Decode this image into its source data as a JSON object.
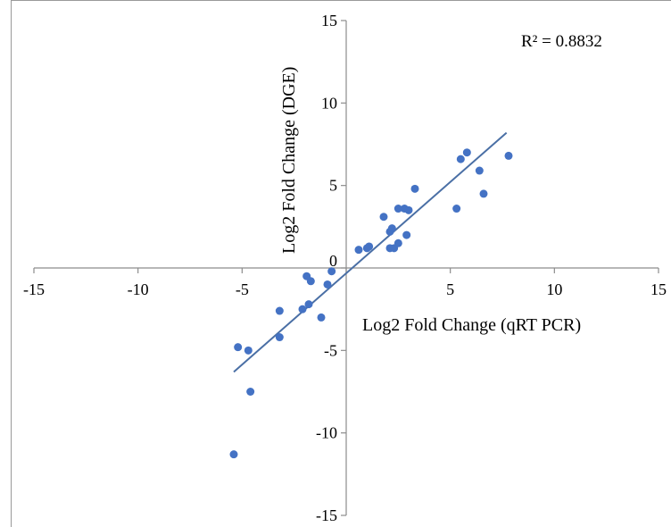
{
  "chart_data": {
    "type": "scatter",
    "xlabel": "Log2 Fold Change (qRT PCR)",
    "ylabel": "Log2 Fold Change (DGE)",
    "xlim": [
      -15,
      15
    ],
    "ylim": [
      -15,
      15
    ],
    "xticks": [
      -15,
      -10,
      -5,
      0,
      5,
      10,
      15
    ],
    "yticks": [
      -15,
      -10,
      -5,
      0,
      5,
      10,
      15
    ],
    "annotation": "R² = 0.8832",
    "point_color": "#4472c4",
    "trendline_color": "#4a6fa5",
    "grid": false,
    "points": [
      {
        "x": -5.4,
        "y": -11.3
      },
      {
        "x": -5.2,
        "y": -4.8
      },
      {
        "x": -4.7,
        "y": -5.0
      },
      {
        "x": -4.6,
        "y": -7.5
      },
      {
        "x": -3.2,
        "y": -2.6
      },
      {
        "x": -3.2,
        "y": -4.2
      },
      {
        "x": -2.1,
        "y": -2.5
      },
      {
        "x": -1.9,
        "y": -0.5
      },
      {
        "x": -1.8,
        "y": -2.2
      },
      {
        "x": -1.7,
        "y": -0.8
      },
      {
        "x": -1.2,
        "y": -3.0
      },
      {
        "x": -0.9,
        "y": -1.0
      },
      {
        "x": -0.7,
        "y": -0.2
      },
      {
        "x": 0.6,
        "y": 1.1
      },
      {
        "x": 1.0,
        "y": 1.2
      },
      {
        "x": 1.1,
        "y": 1.3
      },
      {
        "x": 1.8,
        "y": 3.1
      },
      {
        "x": 2.1,
        "y": 1.2
      },
      {
        "x": 2.1,
        "y": 2.2
      },
      {
        "x": 2.2,
        "y": 2.4
      },
      {
        "x": 2.3,
        "y": 1.2
      },
      {
        "x": 2.5,
        "y": 1.5
      },
      {
        "x": 2.5,
        "y": 3.6
      },
      {
        "x": 2.8,
        "y": 3.6
      },
      {
        "x": 2.9,
        "y": 2.0
      },
      {
        "x": 3.0,
        "y": 3.5
      },
      {
        "x": 3.3,
        "y": 4.8
      },
      {
        "x": 5.3,
        "y": 3.6
      },
      {
        "x": 5.5,
        "y": 6.6
      },
      {
        "x": 5.8,
        "y": 7.0
      },
      {
        "x": 6.4,
        "y": 5.9
      },
      {
        "x": 6.6,
        "y": 4.5
      },
      {
        "x": 7.8,
        "y": 6.8
      }
    ],
    "trendline": {
      "x": [
        -5.4,
        7.7
      ],
      "y": [
        -6.3,
        8.2
      ]
    }
  }
}
